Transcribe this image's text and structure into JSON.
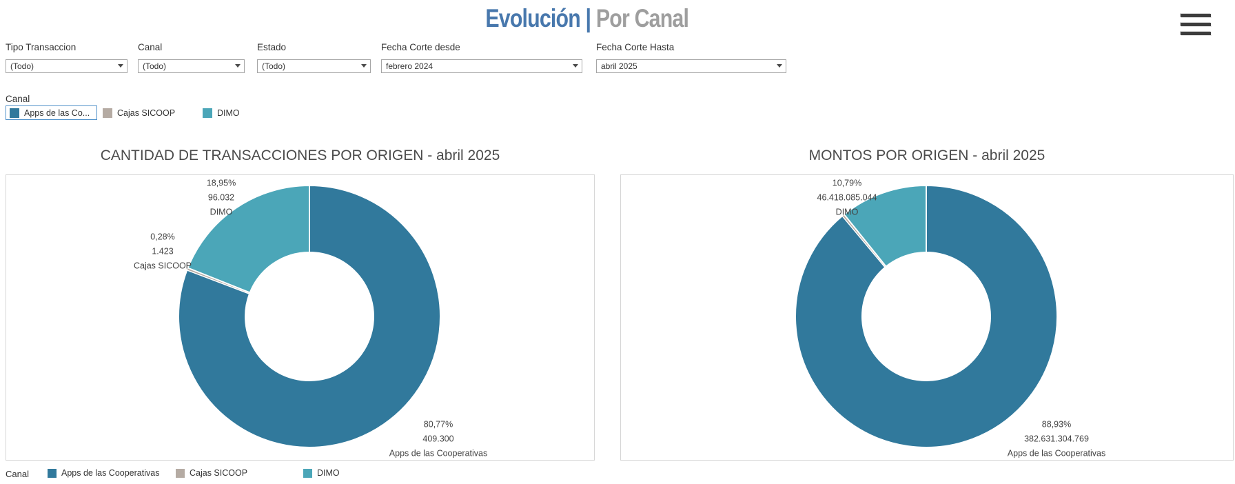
{
  "header": {
    "title": {
      "primary": "Evolución |",
      "secondary": " Por Canal"
    }
  },
  "filters": [
    {
      "label": "Tipo Transaccion",
      "value": "(Todo)"
    },
    {
      "label": "Canal",
      "value": "(Todo)"
    },
    {
      "label": "Estado",
      "value": "(Todo)"
    },
    {
      "label": "Fecha Corte desde",
      "value": "febrero 2024"
    },
    {
      "label": "Fecha Corte Hasta",
      "value": "abril 2025"
    }
  ],
  "canal_legend": {
    "title": "Canal",
    "items": [
      {
        "label": "Apps de las Co...",
        "color": "#31799c",
        "selected": true
      },
      {
        "label": "Cajas SICOOP",
        "color": "#b5aba3",
        "selected": false
      },
      {
        "label": "DIMO",
        "color": "#4ba6b8",
        "selected": false
      }
    ]
  },
  "chart_data": [
    {
      "type": "pie",
      "donut": true,
      "title": "CANTIDAD DE TRANSACCIONES POR ORIGEN - abril 2025",
      "start": "top",
      "direction": "clockwise",
      "slices": [
        {
          "name": "Apps de las Cooperativas",
          "value": 409300,
          "value_label": "409.300",
          "percent": 80.77,
          "percent_label": "80,77%",
          "color": "#31799c",
          "show_label": true
        },
        {
          "name": "Cajas SICOOP",
          "value": 1423,
          "value_label": "1.423",
          "percent": 0.28,
          "percent_label": "0,28%",
          "color": "#b5aba3",
          "show_label": true
        },
        {
          "name": "DIMO",
          "value": 96032,
          "value_label": "96.032",
          "percent": 18.95,
          "percent_label": "18,95%",
          "color": "#4ba6b8",
          "show_label": true
        }
      ]
    },
    {
      "type": "pie",
      "donut": true,
      "title": "MONTOS POR ORIGEN -  abril 2025",
      "start": "top",
      "direction": "clockwise",
      "slices": [
        {
          "name": "Apps de las Cooperativas",
          "value": 382631304769,
          "value_label": "382.631.304.769",
          "percent": 88.93,
          "percent_label": "88,93%",
          "color": "#31799c",
          "show_label": true
        },
        {
          "name": "Cajas SICOOP",
          "percent": 0.28,
          "color": "#b5aba3",
          "show_label": false
        },
        {
          "name": "DIMO",
          "value": 46418085044,
          "value_label": "46.418.085.044",
          "percent": 10.79,
          "percent_label": "10,79%",
          "color": "#4ba6b8",
          "show_label": true
        }
      ]
    }
  ],
  "bottom_legend": {
    "title": "Canal",
    "items": [
      {
        "label": "Apps de las Cooperativas",
        "color": "#31799c"
      },
      {
        "label": "Cajas SICOOP",
        "color": "#b5aba3"
      },
      {
        "label": "DIMO",
        "color": "#4ba6b8"
      }
    ]
  }
}
